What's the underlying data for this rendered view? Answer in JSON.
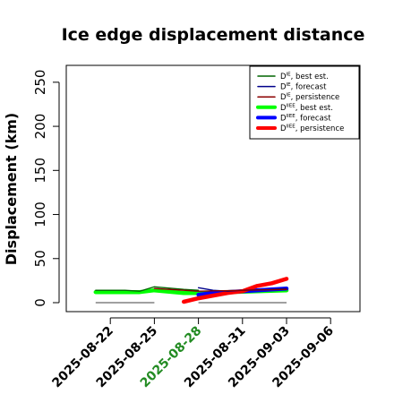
{
  "chart_data": {
    "type": "line",
    "title": "Ice edge displacement distance",
    "xlabel": "",
    "ylabel": "Displacement (km)",
    "ylim": [
      0,
      260
    ],
    "yticks": [
      0,
      50,
      100,
      150,
      200,
      250
    ],
    "xlim": [
      "2025-08-19",
      "2025-09-08"
    ],
    "xticks": [
      "2025-08-22",
      "2025-08-25",
      "2025-08-28",
      "2025-08-31",
      "2025-09-03",
      "2025-09-06"
    ],
    "highlight_xtick": "2025-08-28",
    "highlight_color": "#228b22",
    "legend_position": "top-right",
    "grid": false,
    "series": [
      {
        "name": "D^IE, best est.",
        "color": "#006400",
        "width": 1.3,
        "legend_width": 1.5,
        "points": [
          [
            "2025-08-21",
            14
          ],
          [
            "2025-08-23",
            14
          ],
          [
            "2025-08-24",
            13
          ],
          [
            "2025-08-25",
            18
          ],
          [
            "2025-08-27",
            15
          ],
          [
            "2025-08-28",
            14
          ]
        ]
      },
      {
        "name": "D^IE, forecast",
        "color": "#00008b",
        "width": 1.3,
        "legend_width": 1.5,
        "points": [
          [
            "2025-08-28",
            17
          ],
          [
            "2025-08-29",
            14
          ],
          [
            "2025-08-30",
            13
          ],
          [
            "2025-08-31",
            14
          ],
          [
            "2025-09-02",
            15
          ],
          [
            "2025-09-03",
            16
          ]
        ]
      },
      {
        "name": "D^IE, persistence",
        "color": "#8b0000",
        "width": 1.3,
        "legend_width": 1.5,
        "points": [
          [
            "2025-08-25",
            16
          ],
          [
            "2025-08-28",
            13
          ],
          [
            "2025-08-31",
            14
          ],
          [
            "2025-09-03",
            15
          ]
        ]
      },
      {
        "name": "D^IIEE, best est.",
        "color": "#00ff00",
        "width": 4.5,
        "legend_width": 4,
        "points": [
          [
            "2025-08-21",
            12
          ],
          [
            "2025-08-24",
            12
          ],
          [
            "2025-08-25",
            14
          ],
          [
            "2025-08-27",
            11
          ],
          [
            "2025-08-28",
            11
          ],
          [
            "2025-08-30",
            12
          ],
          [
            "2025-09-01",
            13
          ],
          [
            "2025-09-03",
            14
          ]
        ]
      },
      {
        "name": "D^IIEE, forecast",
        "color": "#0000ff",
        "width": 4.5,
        "legend_width": 4,
        "points": [
          [
            "2025-08-28",
            9
          ],
          [
            "2025-08-29",
            11
          ],
          [
            "2025-08-30",
            12
          ],
          [
            "2025-08-31",
            13
          ],
          [
            "2025-09-01",
            14
          ],
          [
            "2025-09-02",
            15
          ],
          [
            "2025-09-03",
            16
          ]
        ]
      },
      {
        "name": "D^IIEE, persistence",
        "color": "#ff0000",
        "width": 4.5,
        "legend_width": 4,
        "points": [
          [
            "2025-08-27",
            1
          ],
          [
            "2025-08-28",
            5
          ],
          [
            "2025-08-29",
            8
          ],
          [
            "2025-08-30",
            11
          ],
          [
            "2025-08-31",
            13
          ],
          [
            "2025-09-01",
            19
          ],
          [
            "2025-09-02",
            22
          ],
          [
            "2025-09-03",
            27
          ]
        ]
      }
    ],
    "reference_lines": [
      {
        "color": "#808080",
        "y": 0,
        "from": "2025-08-21",
        "to": "2025-08-25"
      },
      {
        "color": "#808080",
        "y": 0,
        "from": "2025-08-28",
        "to": "2025-09-03"
      }
    ],
    "legend": [
      {
        "main": "D",
        "sup": "IE",
        "text": ", best est."
      },
      {
        "main": "D",
        "sup": "IE",
        "text": ", forecast"
      },
      {
        "main": "D",
        "sup": "IE",
        "text": ", persistence"
      },
      {
        "main": "D",
        "sup": "IIEE",
        "text": ", best est."
      },
      {
        "main": "D",
        "sup": "IIEE",
        "text": ", forecast"
      },
      {
        "main": "D",
        "sup": "IIEE",
        "text": ", persistence"
      }
    ]
  }
}
